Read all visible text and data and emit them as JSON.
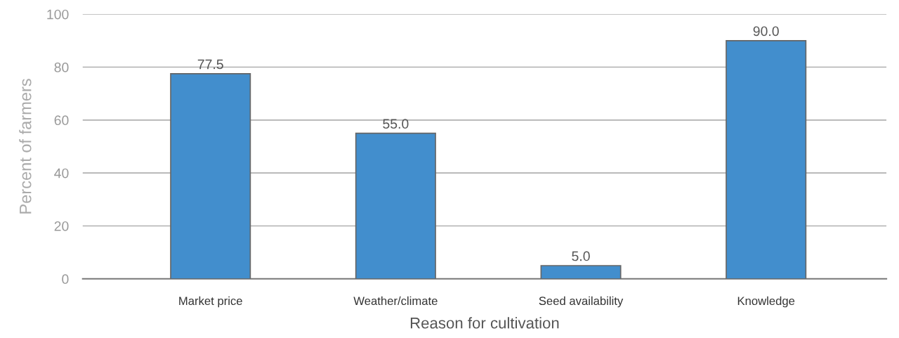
{
  "chart_data": {
    "type": "bar",
    "xlabel": "Reason for cultivation",
    "ylabel": "Percent of farmers",
    "categories": [
      "Market price",
      "Weather/climate",
      "Seed availability",
      "Knowledge"
    ],
    "values": [
      77.5,
      55.0,
      5.0,
      90.0
    ],
    "color": "#428ecd",
    "ylim": [
      0,
      100
    ],
    "yticks": [
      0,
      20,
      40,
      60,
      80,
      100
    ],
    "grid": "y",
    "value_labels": [
      "77.5",
      "55.0",
      "5.0",
      "90.0"
    ]
  }
}
